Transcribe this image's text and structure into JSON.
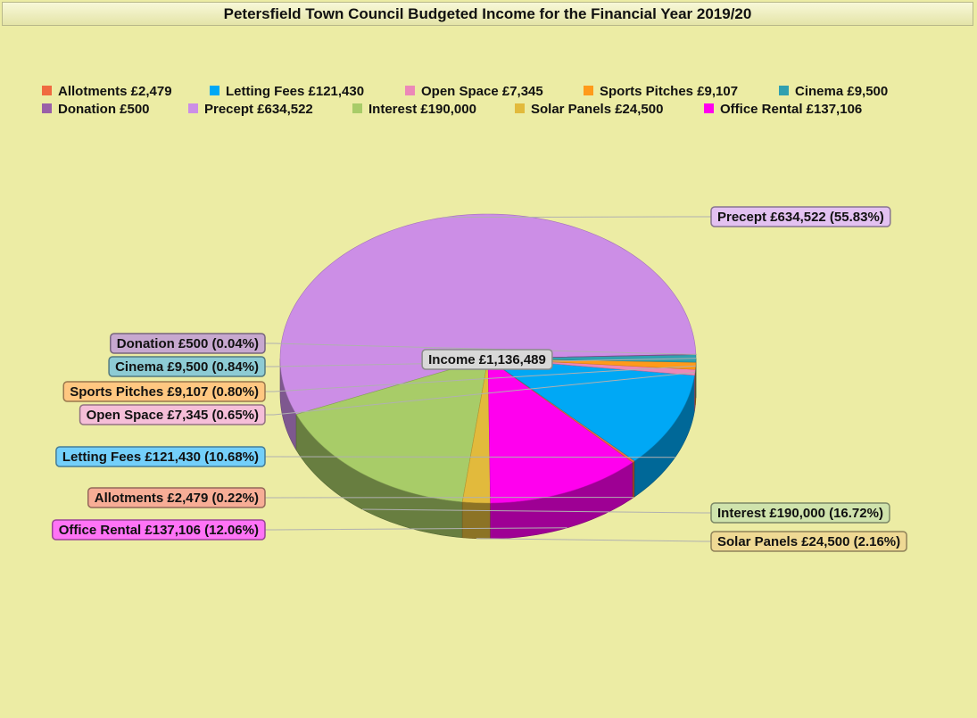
{
  "chart_data": {
    "type": "pie",
    "title": "Petersfield Town Council Budgeted Income for the Financial Year 2019/20",
    "center_label": "Income £1,136,489",
    "slices": [
      {
        "label": "Precept £634,522",
        "value": 634522,
        "percent": "55.83%",
        "color": "#cc8ee6"
      },
      {
        "label": "Interest £190,000",
        "value": 190000,
        "percent": "16.72%",
        "color": "#a8cc68"
      },
      {
        "label": "Solar Panels £24,500",
        "value": 24500,
        "percent": "2.16%",
        "color": "#e2ba3c"
      },
      {
        "label": "Office Rental £137,106",
        "value": 137106,
        "percent": "12.06%",
        "color": "#ff00ee"
      },
      {
        "label": "Allotments £2,479",
        "value": 2479,
        "percent": "0.22%",
        "color": "#f06a40"
      },
      {
        "label": "Letting Fees £121,430",
        "value": 121430,
        "percent": "10.68%",
        "color": "#00a8f5"
      },
      {
        "label": "Open Space £7,345",
        "value": 7345,
        "percent": "0.65%",
        "color": "#ec88b8"
      },
      {
        "label": "Sports Pitches £9,107",
        "value": 9107,
        "percent": "0.80%",
        "color": "#ff9a1a"
      },
      {
        "label": "Cinema £9,500",
        "value": 9500,
        "percent": "0.84%",
        "color": "#30a0b0"
      },
      {
        "label": "Donation £500",
        "value": 500,
        "percent": "0.04%",
        "color": "#9a60a8"
      }
    ],
    "legend": {
      "placement": "top",
      "entries": [
        {
          "label": "Allotments £2,479",
          "color": "#f06a40"
        },
        {
          "label": "Letting Fees £121,430",
          "color": "#00a8f5"
        },
        {
          "label": "Open Space £7,345",
          "color": "#ec88b8"
        },
        {
          "label": "Sports Pitches £9,107",
          "color": "#ff9a1a"
        },
        {
          "label": "Cinema £9,500",
          "color": "#30a0b0"
        },
        {
          "label": "Donation £500",
          "color": "#9a60a8"
        },
        {
          "label": "Precept £634,522",
          "color": "#cc8ee6"
        },
        {
          "label": "Interest £190,000",
          "color": "#a8cc68"
        },
        {
          "label": "Solar Panels £24,500",
          "color": "#e2ba3c"
        },
        {
          "label": "Office Rental £137,106",
          "color": "#ff00ee"
        }
      ]
    }
  }
}
